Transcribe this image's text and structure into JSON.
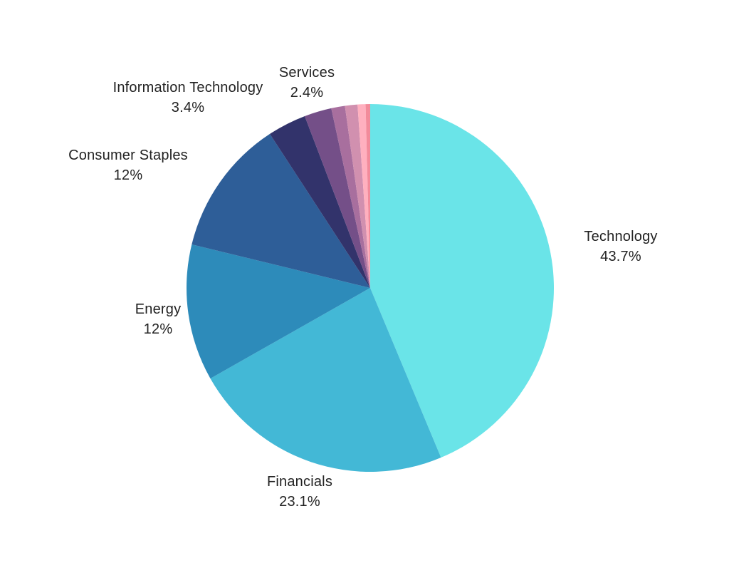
{
  "chart_data": {
    "type": "pie",
    "title": "",
    "start_angle_deg": 0,
    "direction": "clockwise",
    "slices": [
      {
        "label": "Technology",
        "value_label": "43.7%",
        "value": 43.7,
        "color": "#6ae4e8",
        "show_label": true
      },
      {
        "label": "Financials",
        "value_label": "23.1%",
        "value": 23.1,
        "color": "#43b8d6",
        "show_label": true
      },
      {
        "label": "Energy",
        "value_label": "12%",
        "value": 12.0,
        "color": "#2d8bba",
        "show_label": true
      },
      {
        "label": "Consumer Staples",
        "value_label": "12%",
        "value": 12.0,
        "color": "#2e5e98",
        "show_label": true
      },
      {
        "label": "Information Technology",
        "value_label": "3.4%",
        "value": 3.4,
        "color": "#32336b",
        "show_label": true
      },
      {
        "label": "Services",
        "value_label": "2.4%",
        "value": 2.4,
        "color": "#744f88",
        "show_label": true
      },
      {
        "label": "",
        "value_label": "",
        "value": 1.2,
        "color": "#a86f9e",
        "show_label": false
      },
      {
        "label": "",
        "value_label": "",
        "value": 1.1,
        "color": "#d190af",
        "show_label": false
      },
      {
        "label": "",
        "value_label": "",
        "value": 0.7,
        "color": "#ffb0bf",
        "show_label": false
      },
      {
        "label": "",
        "value_label": "",
        "value": 0.4,
        "color": "#f28b9b",
        "show_label": false
      }
    ]
  }
}
